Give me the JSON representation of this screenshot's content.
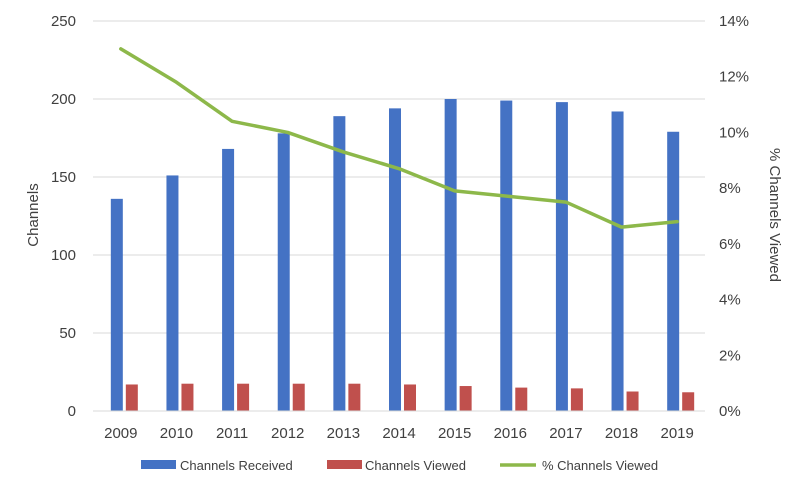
{
  "chart_data": {
    "type": "bar",
    "categories": [
      "2009",
      "2010",
      "2011",
      "2012",
      "2013",
      "2014",
      "2015",
      "2016",
      "2017",
      "2018",
      "2019"
    ],
    "series": [
      {
        "name": "Channels Received",
        "type": "bar",
        "axis": "left",
        "color": "#4472C4",
        "values": [
          136,
          151,
          168,
          178,
          189,
          194,
          200,
          199,
          198,
          192,
          179
        ]
      },
      {
        "name": "Channels Viewed",
        "type": "bar",
        "axis": "left",
        "color": "#C0504D",
        "values": [
          17,
          17.5,
          17.5,
          17.5,
          17.5,
          17,
          16,
          15,
          14.5,
          12.5,
          12
        ]
      },
      {
        "name": "% Channels Viewed",
        "type": "line",
        "axis": "right",
        "color": "#8DB84A",
        "values": [
          0.13,
          0.118,
          0.104,
          0.1,
          0.093,
          0.087,
          0.079,
          0.077,
          0.075,
          0.066,
          0.068
        ]
      }
    ],
    "ylabel": "Channels",
    "ylim": [
      0,
      250
    ],
    "yticks": [
      "0",
      "50",
      "100",
      "150",
      "200",
      "250"
    ],
    "y2label": "% Channels Viewed",
    "y2lim": [
      0,
      0.14
    ],
    "y2ticks": [
      "0%",
      "2%",
      "4%",
      "6%",
      "8%",
      "10%",
      "12%",
      "14%"
    ],
    "grid": true,
    "legend": "bottom"
  }
}
